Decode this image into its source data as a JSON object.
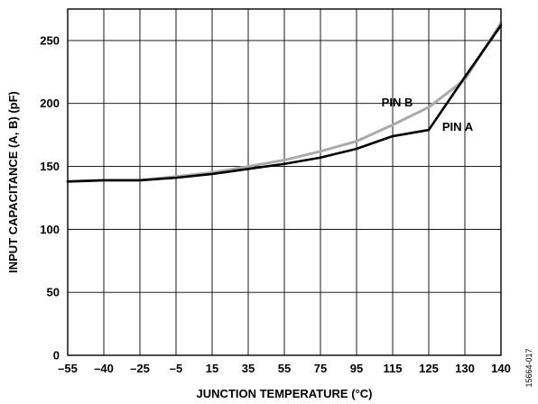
{
  "chart_data": {
    "type": "line",
    "title": "",
    "xlabel": "JUNCTION TEMPERATURE (°C)",
    "ylabel": "INPUT CAPACITANCE (A, B) (pF)",
    "x_categories": [
      "–55",
      "–40",
      "–25",
      "–5",
      "15",
      "35",
      "55",
      "75",
      "95",
      "115",
      "125",
      "130",
      "140"
    ],
    "ylim": [
      0,
      275
    ],
    "yticks": [
      0,
      50,
      100,
      150,
      200,
      250
    ],
    "grid": true,
    "series": [
      {
        "name": "PIN A",
        "color": "#000000",
        "points": [
          {
            "x": "–55",
            "y": 138
          },
          {
            "x": "–40",
            "y": 139
          },
          {
            "x": "–25",
            "y": 139
          },
          {
            "x": "–5",
            "y": 141
          },
          {
            "x": "15",
            "y": 144
          },
          {
            "x": "35",
            "y": 148
          },
          {
            "x": "55",
            "y": 152
          },
          {
            "x": "75",
            "y": 157
          },
          {
            "x": "95",
            "y": 164
          },
          {
            "x": "115",
            "y": 174
          },
          {
            "x": "125",
            "y": 179
          },
          {
            "x": "130",
            "y": 221
          },
          {
            "x": "140",
            "y": 262
          }
        ]
      },
      {
        "name": "PIN B",
        "color": "#aaaaaa",
        "points": [
          {
            "x": "–55",
            "y": 138
          },
          {
            "x": "–40",
            "y": 139
          },
          {
            "x": "–25",
            "y": 139
          },
          {
            "x": "–5",
            "y": 142
          },
          {
            "x": "15",
            "y": 145
          },
          {
            "x": "35",
            "y": 150
          },
          {
            "x": "55",
            "y": 155
          },
          {
            "x": "75",
            "y": 162
          },
          {
            "x": "95",
            "y": 170
          },
          {
            "x": "115",
            "y": 183
          },
          {
            "x": "125",
            "y": 197
          },
          {
            "x": "130",
            "y": 219
          },
          {
            "x": "140",
            "y": 264
          }
        ]
      }
    ]
  },
  "figure_id": "15664-017"
}
